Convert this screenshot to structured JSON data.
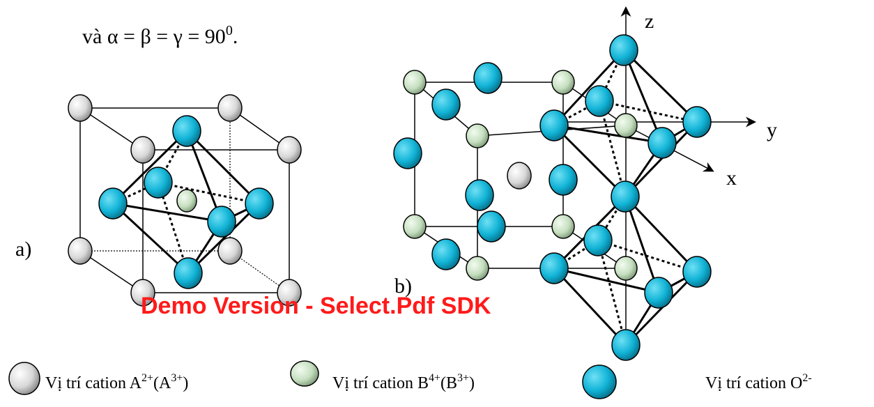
{
  "intro": {
    "text": "và α = β = γ = 90",
    "sup": "0",
    "end": "."
  },
  "axes": {
    "z": "z",
    "y": "y",
    "x": "x"
  },
  "panel_labels": {
    "a": "a)",
    "b": "b)"
  },
  "watermark": "Demo Version - Select.Pdf SDK",
  "legend": [
    {
      "parts": [
        "Vị trí cation A",
        "2+",
        "(A",
        "3+",
        ")"
      ]
    },
    {
      "parts": [
        "Vị trí cation B",
        "4+",
        "(B",
        "3+",
        ")"
      ]
    },
    {
      "parts": [
        "Vị trí cation O",
        "2-"
      ]
    }
  ]
}
